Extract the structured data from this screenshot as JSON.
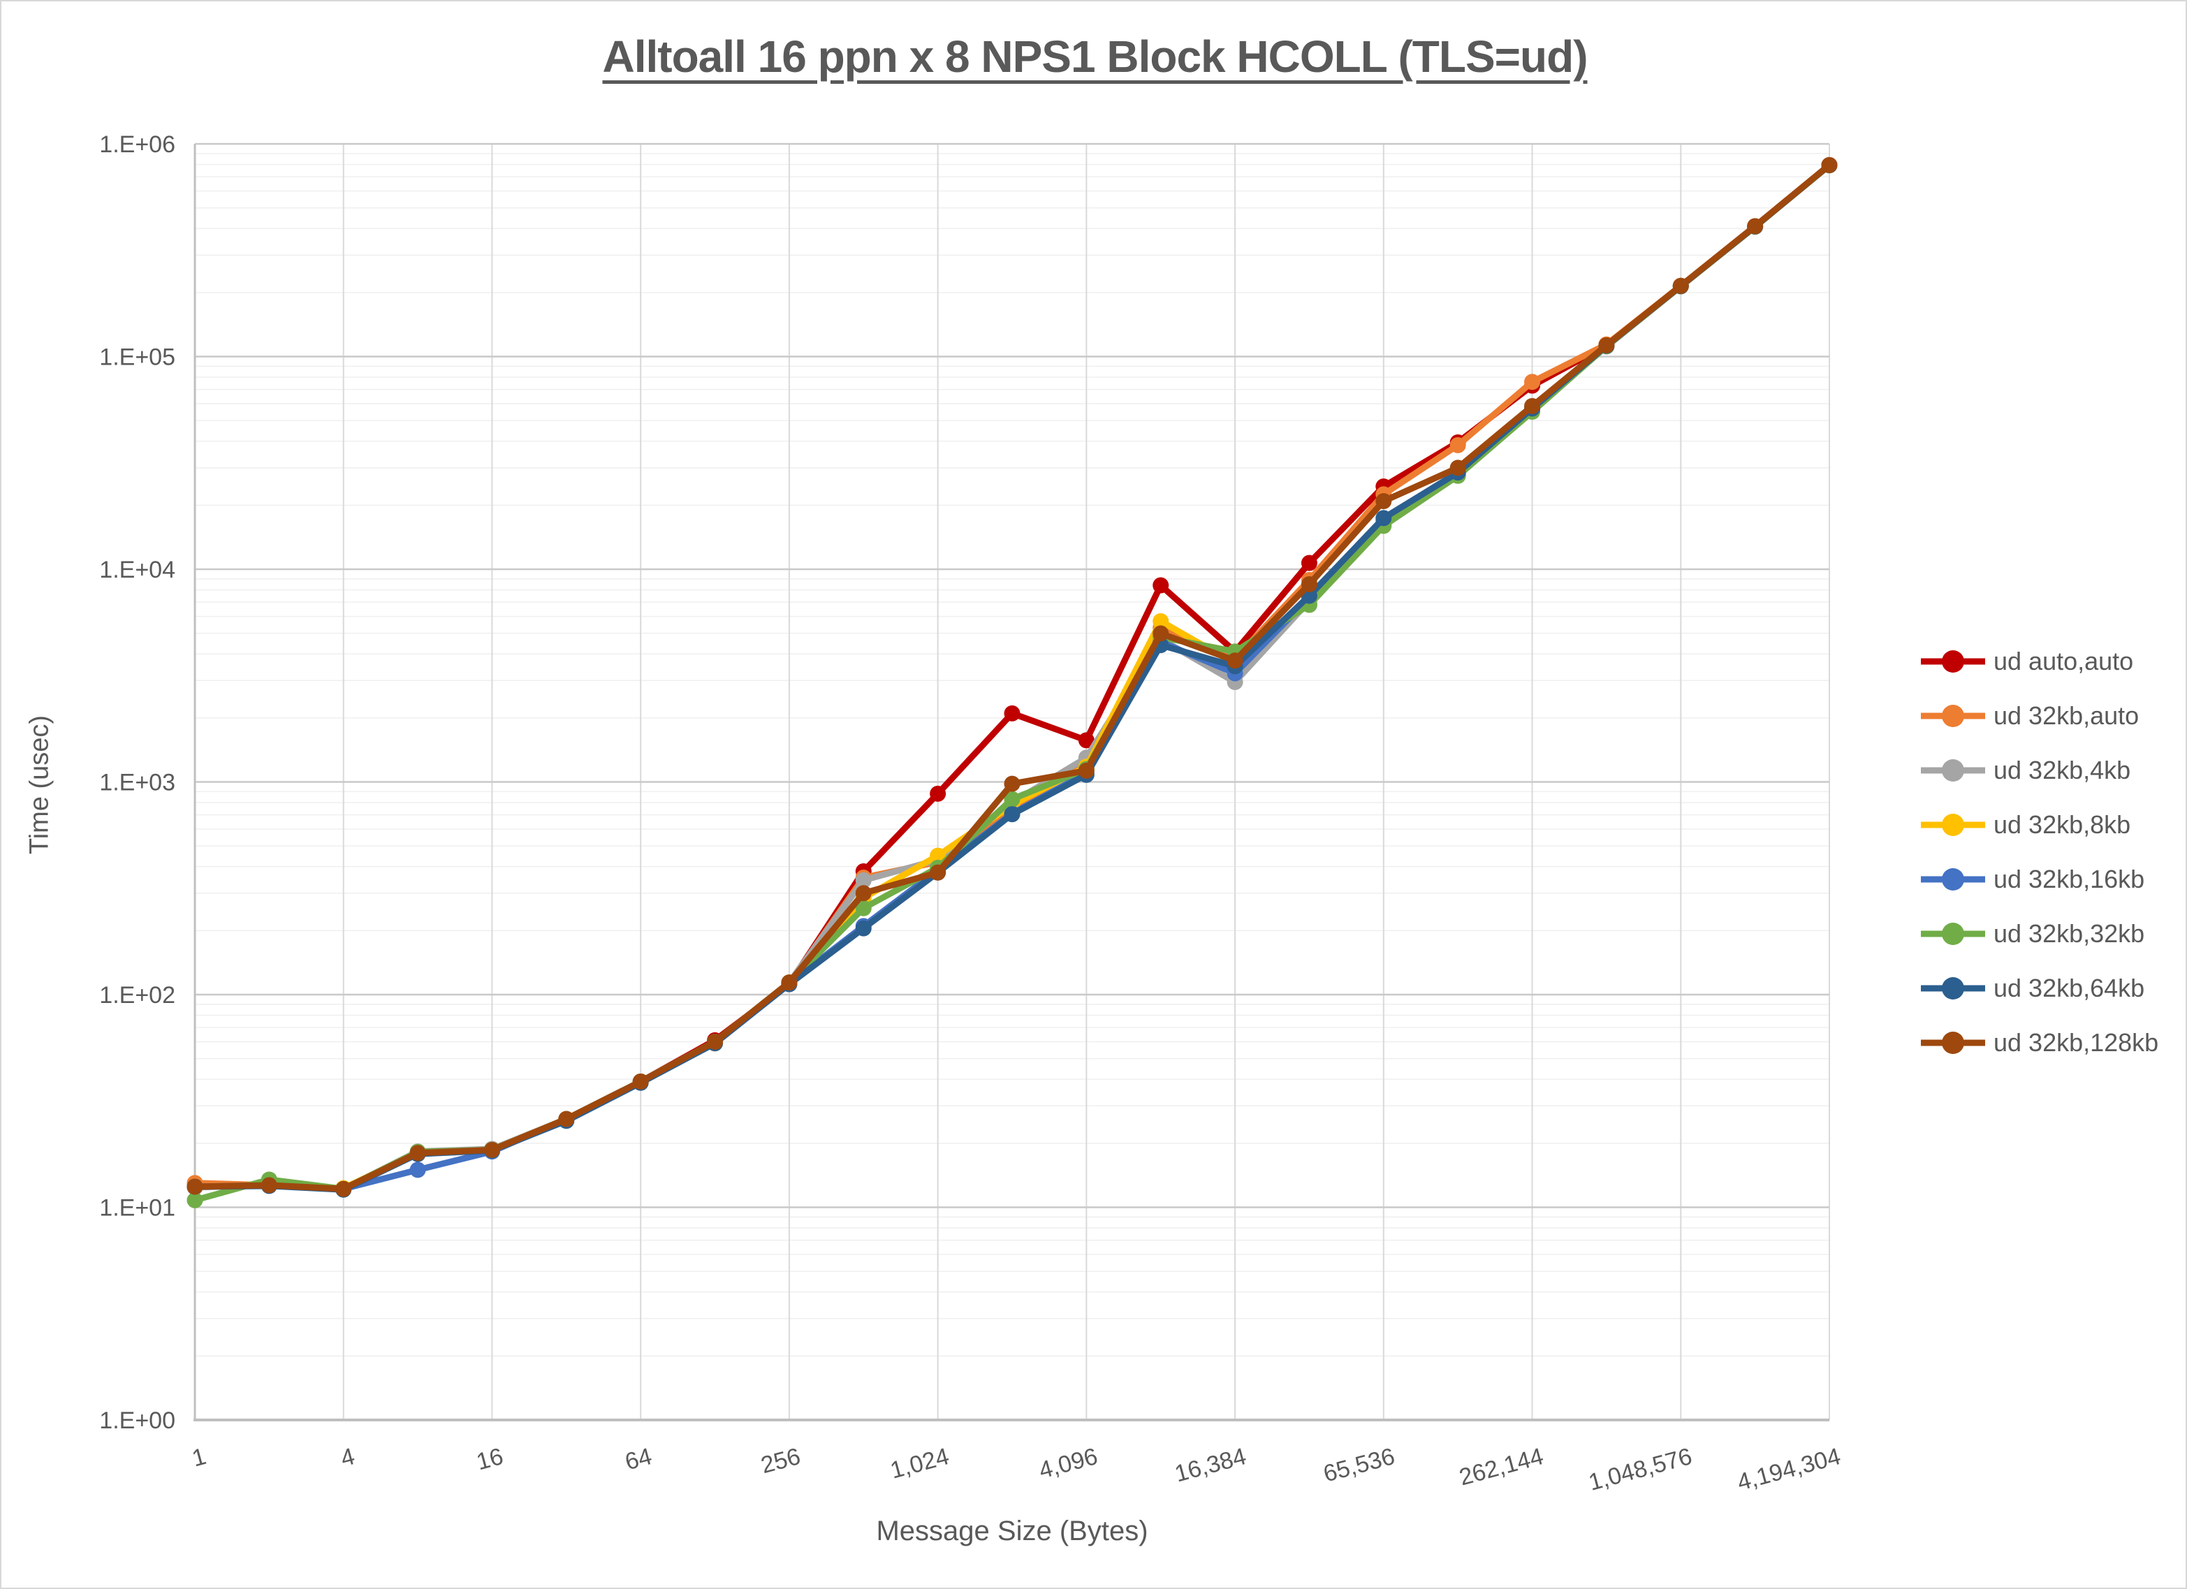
{
  "chart_data": {
    "type": "line",
    "title": "Alltoall 16 ppn x 8 NPS1 Block HCOLL (TLS=ud)",
    "xlabel": "Message Size (Bytes)",
    "ylabel": "Time (usec)",
    "x_scale": "log2-category",
    "y_scale": "log10",
    "ylim": [
      1,
      1000000
    ],
    "y_tick_labels": [
      "1.E+00",
      "1.E+01",
      "1.E+02",
      "1.E+03",
      "1.E+04",
      "1.E+05",
      "1.E+06"
    ],
    "x_tick_labels": [
      "1",
      "4",
      "16",
      "64",
      "256",
      "1,024",
      "4,096",
      "16,384",
      "65,536",
      "262,144",
      "1,048,576",
      "4,194,304"
    ],
    "grid": "major-and-log-minor",
    "legend_position": "right",
    "text_color": "#595959",
    "gridline_major_color": "#c9c9c9",
    "gridline_minor_color": "#efefef",
    "gridline_vertical_color": "#d9d9d9",
    "axis_line_color": "#bfbfbf",
    "categories": [
      1,
      2,
      4,
      8,
      16,
      32,
      64,
      128,
      256,
      512,
      1024,
      2048,
      4096,
      8192,
      16384,
      32768,
      65536,
      131072,
      262144,
      524288,
      1048576,
      2097152,
      4194304
    ],
    "series": [
      {
        "name": "ud auto,auto",
        "color": "#C00000",
        "values": [
          12.6,
          12.7,
          12.2,
          17.9,
          18.6,
          26,
          39,
          61,
          112,
          380,
          880,
          2100,
          1570,
          8400,
          4100,
          10700,
          24500,
          39500,
          73000,
          113000,
          215000,
          410000,
          795000
        ]
      },
      {
        "name": "ud 32kb,auto",
        "color": "#ED7D31",
        "values": [
          13.0,
          12.7,
          12.2,
          18.0,
          18.6,
          26,
          39,
          60,
          113,
          355,
          420,
          760,
          1200,
          5300,
          3800,
          8900,
          22500,
          38300,
          76000,
          114000,
          215000,
          410000,
          795000
        ]
      },
      {
        "name": "ud 32kb,4kb",
        "color": "#A5A5A5",
        "values": [
          12.4,
          12.7,
          12.2,
          18.3,
          18.8,
          26,
          39,
          60,
          114,
          345,
          430,
          800,
          1300,
          4700,
          2950,
          7100,
          16300,
          27800,
          55500,
          111500,
          214000,
          408000,
          793000
        ]
      },
      {
        "name": "ud 32kb,8kb",
        "color": "#FFC000",
        "values": [
          12.5,
          12.7,
          12.3,
          18.0,
          18.6,
          26,
          39,
          59,
          113,
          285,
          450,
          780,
          1180,
          5700,
          3600,
          7300,
          16300,
          28000,
          56000,
          112000,
          214000,
          408000,
          793000
        ]
      },
      {
        "name": "ud 32kb,16kb",
        "color": "#4472C4",
        "values": [
          12.5,
          12.7,
          12.2,
          15.0,
          18.3,
          26,
          39,
          60,
          113,
          210,
          385,
          710,
          1100,
          4560,
          3240,
          7350,
          17000,
          28200,
          56500,
          112000,
          214000,
          408000,
          793000
        ]
      },
      {
        "name": "ud 32kb,32kb",
        "color": "#70AD47",
        "values": [
          10.8,
          13.5,
          12.2,
          18.2,
          18.6,
          26,
          39,
          60,
          114,
          255,
          395,
          830,
          1150,
          4800,
          4100,
          6800,
          16000,
          27500,
          55000,
          112000,
          214000,
          408000,
          793000
        ]
      },
      {
        "name": "ud 32kb,64kb",
        "color": "#2B5F8F",
        "values": [
          12.5,
          12.6,
          12.1,
          17.8,
          18.5,
          25.5,
          38.5,
          59,
          112,
          205,
          375,
          705,
          1080,
          4400,
          3500,
          7500,
          17400,
          28500,
          57000,
          112500,
          214500,
          409000,
          794000
        ]
      },
      {
        "name": "ud 32kb,128kb",
        "color": "#9E480E",
        "values": [
          12.5,
          12.7,
          12.2,
          18.0,
          18.6,
          26,
          39,
          60,
          114,
          300,
          375,
          980,
          1130,
          4990,
          3720,
          8500,
          20900,
          30000,
          58500,
          113000,
          215000,
          410000,
          795000
        ]
      }
    ]
  }
}
